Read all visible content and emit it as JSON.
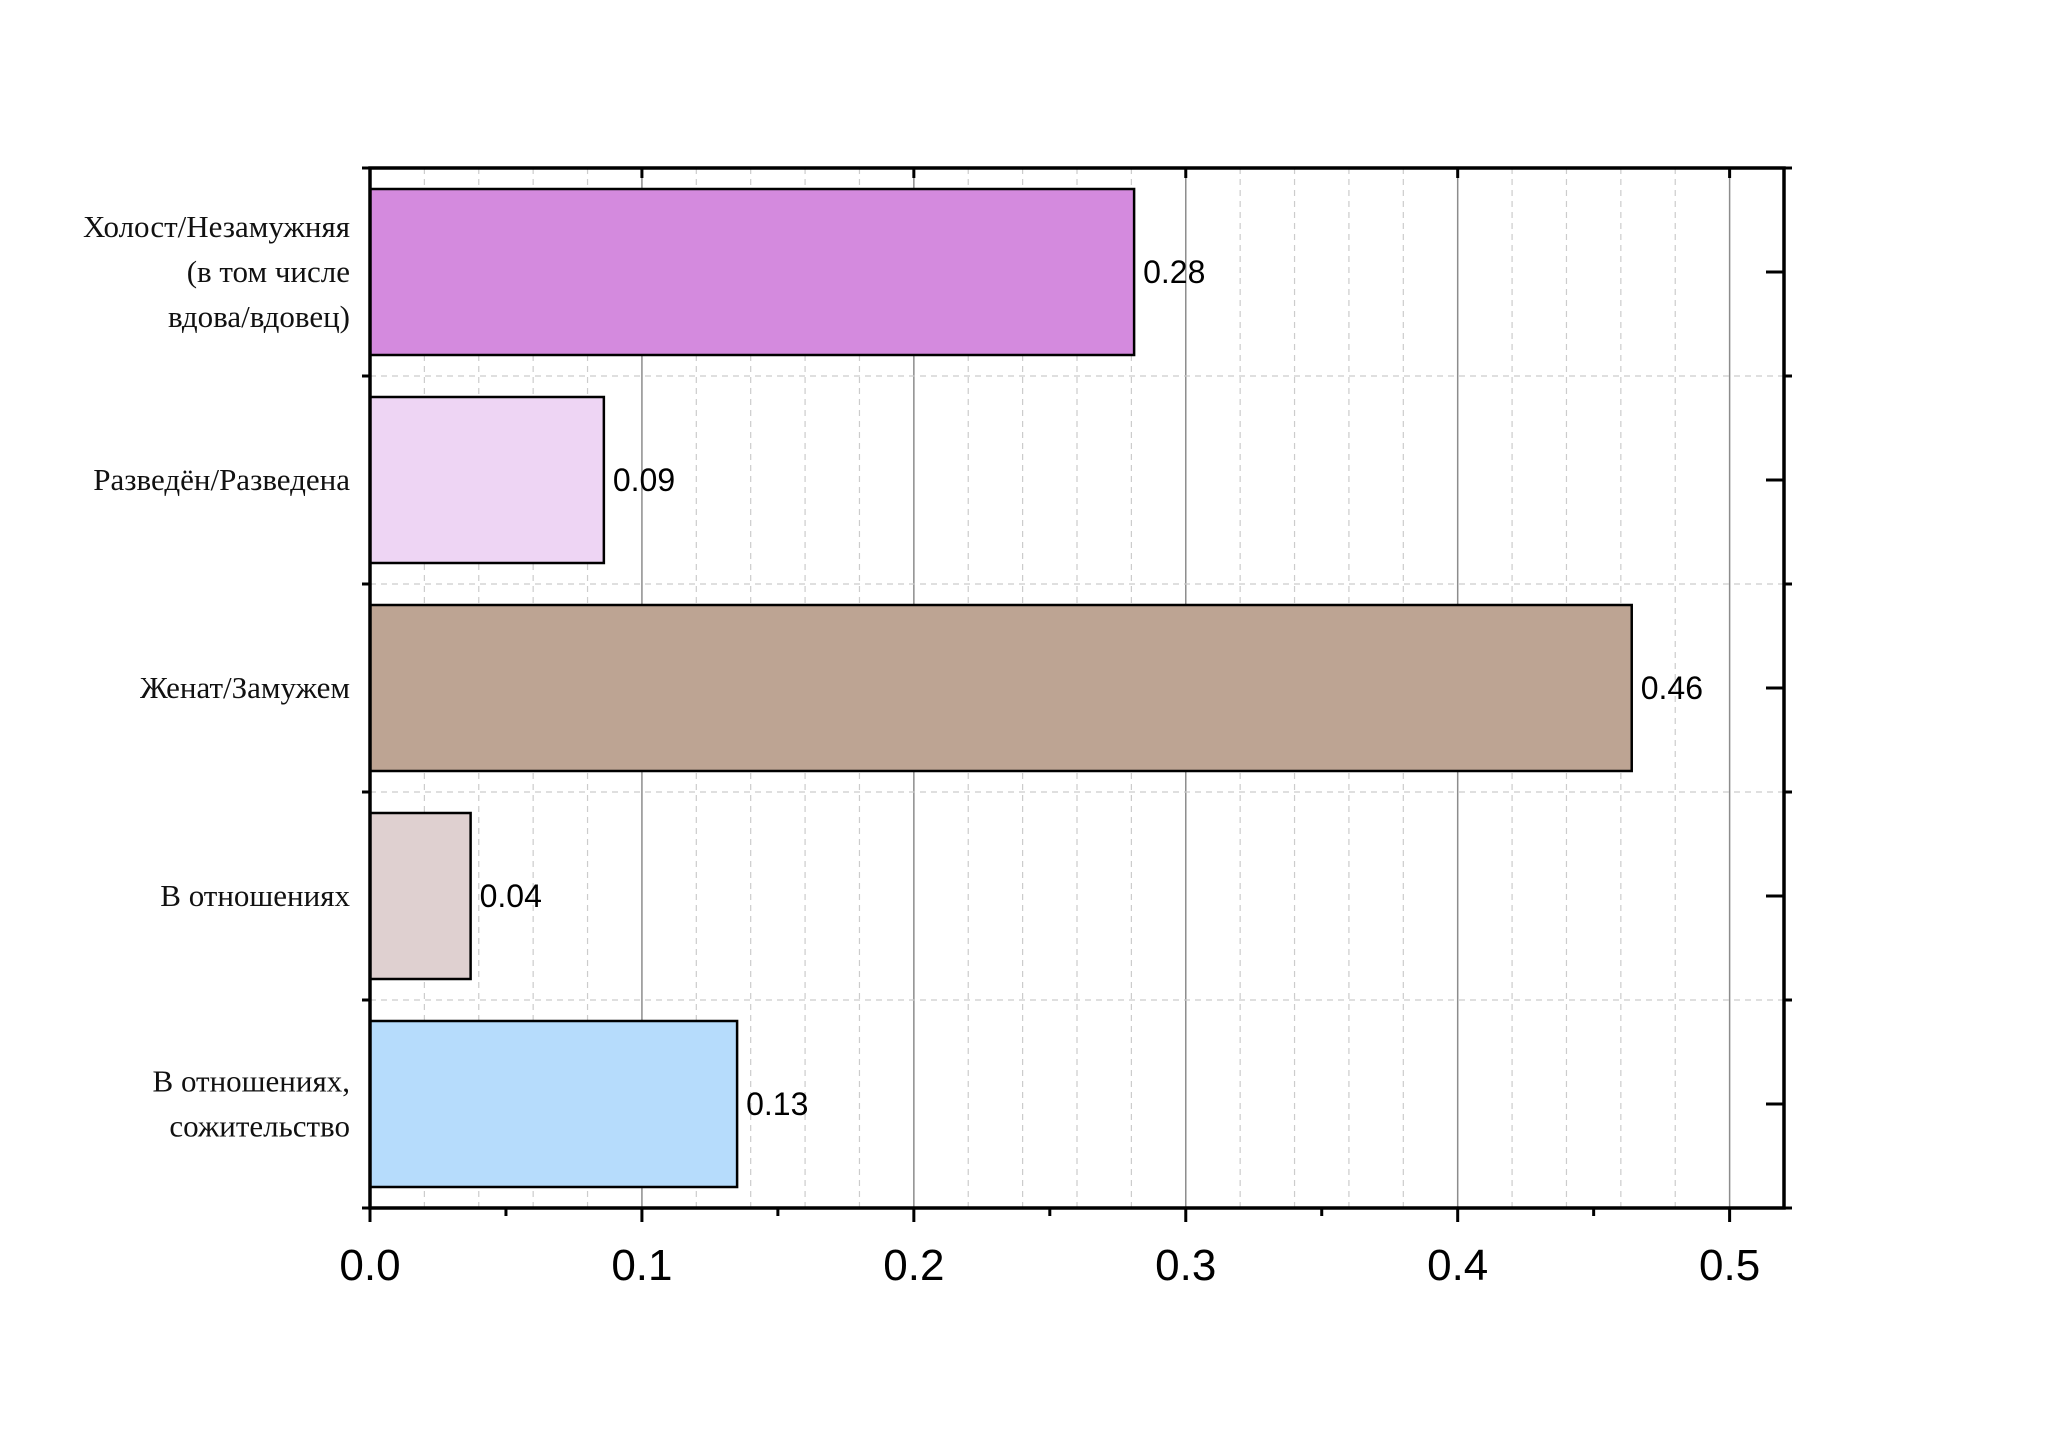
{
  "chart_data": {
    "type": "bar",
    "orientation": "horizontal",
    "categories": [
      [
        "Холост/Незамужняя",
        "(в том числе",
        "вдова/вдовец)"
      ],
      [
        "Разведён/Разведена"
      ],
      [
        "Женат/Замужем"
      ],
      [
        "В отношениях"
      ],
      [
        "В отношениях,",
        "сожительство"
      ]
    ],
    "values": [
      0.281,
      0.086,
      0.464,
      0.037,
      0.135
    ],
    "data_labels": [
      "0.28",
      "0.09",
      "0.46",
      "0.04",
      "0.13"
    ],
    "colors": [
      "#d48ade",
      "#eed5f4",
      "#bda493",
      "#dfd0d0",
      "#b6dcfc"
    ],
    "x_ticks": [
      "0.0",
      "0.1",
      "0.2",
      "0.3",
      "0.4",
      "0.5"
    ],
    "xlim": [
      0,
      0.52
    ],
    "title": "",
    "xlabel": "",
    "ylabel": "",
    "grid": true,
    "legend": "none"
  }
}
